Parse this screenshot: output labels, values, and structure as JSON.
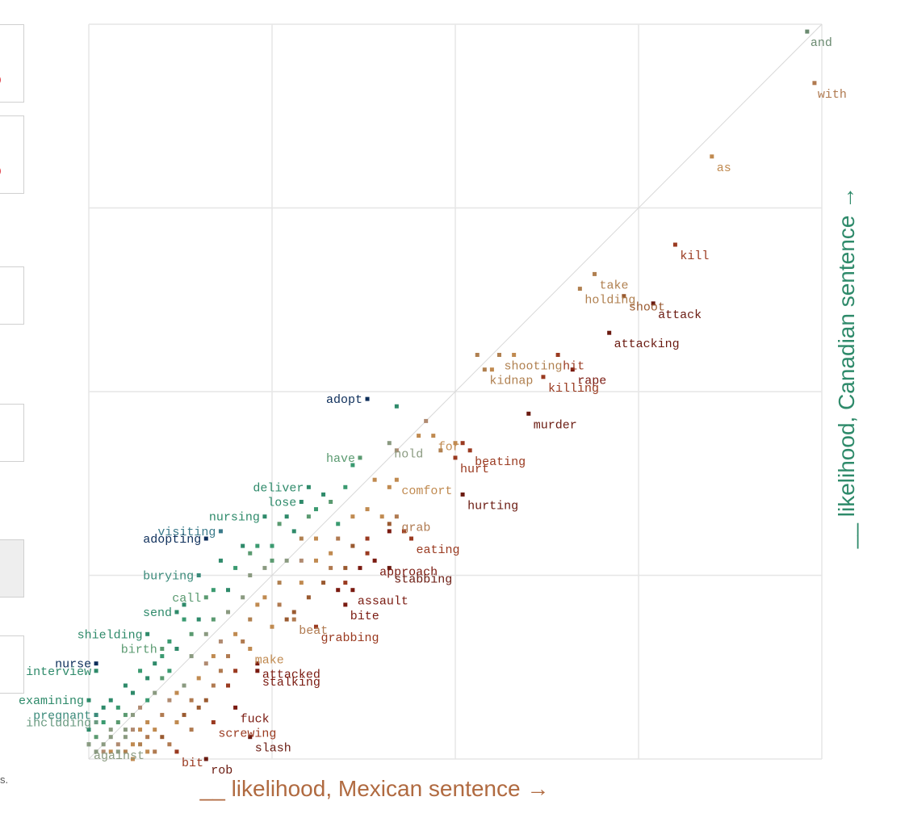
{
  "side_panel": {
    "colors": {
      "accent": "#e0424b",
      "border": "#d0d0d0",
      "active_bg": "#eeeeee"
    },
    "cut_text": "s."
  },
  "chart_data": {
    "type": "scatter",
    "title": "",
    "xlabel": "__ likelihood, Mexican sentence →",
    "ylabel": "__ likelihood, Canadian sentence →",
    "xlim": [
      0,
      1
    ],
    "ylim": [
      0,
      1
    ],
    "grid": true,
    "diagonal": true,
    "color_scale": {
      "mexican_leaning": "#7a1a10",
      "neutral_tan": "#c08a50",
      "neutral_gray": "#8a9a80",
      "canadian_leaning": "#2e8a6a",
      "strong_canadian": "#0d2e5a"
    },
    "x_color": "#b06a40",
    "y_color": "#2e8a6a",
    "labeled_points": [
      {
        "word": "and",
        "x": 0.98,
        "y": 0.99,
        "color": "#6a8a70"
      },
      {
        "word": "with",
        "x": 0.99,
        "y": 0.92,
        "color": "#b07a50"
      },
      {
        "word": "as",
        "x": 0.85,
        "y": 0.82,
        "color": "#c08a50"
      },
      {
        "word": "kill",
        "x": 0.8,
        "y": 0.7,
        "color": "#9a3a20"
      },
      {
        "word": "holding",
        "x": 0.67,
        "y": 0.64,
        "color": "#b08050"
      },
      {
        "word": "take",
        "x": 0.69,
        "y": 0.66,
        "color": "#b08050"
      },
      {
        "word": "shoot",
        "x": 0.73,
        "y": 0.63,
        "color": "#9a5a30"
      },
      {
        "word": "attack",
        "x": 0.77,
        "y": 0.62,
        "color": "#6a1a10"
      },
      {
        "word": "attacking",
        "x": 0.71,
        "y": 0.58,
        "color": "#6a1a10"
      },
      {
        "word": "shooting",
        "x": 0.56,
        "y": 0.55,
        "color": "#b08050"
      },
      {
        "word": "kidnap",
        "x": 0.54,
        "y": 0.53,
        "color": "#b08050"
      },
      {
        "word": "hit",
        "x": 0.64,
        "y": 0.55,
        "color": "#9a3a20"
      },
      {
        "word": "rape",
        "x": 0.66,
        "y": 0.53,
        "color": "#7a1a10"
      },
      {
        "word": "killing",
        "x": 0.62,
        "y": 0.52,
        "color": "#9a3a20"
      },
      {
        "word": "murder",
        "x": 0.6,
        "y": 0.47,
        "color": "#6a1a10"
      },
      {
        "word": "adopt",
        "x": 0.38,
        "y": 0.49,
        "color": "#0d2e5a"
      },
      {
        "word": "hold",
        "x": 0.41,
        "y": 0.43,
        "color": "#8a9a80"
      },
      {
        "word": "for",
        "x": 0.47,
        "y": 0.44,
        "color": "#c08a50"
      },
      {
        "word": "beating",
        "x": 0.52,
        "y": 0.42,
        "color": "#9a3a20"
      },
      {
        "word": "hurt",
        "x": 0.5,
        "y": 0.41,
        "color": "#9a3a20"
      },
      {
        "word": "have",
        "x": 0.37,
        "y": 0.41,
        "color": "#5a9a70"
      },
      {
        "word": "comfort",
        "x": 0.42,
        "y": 0.38,
        "color": "#c08a50"
      },
      {
        "word": "hurting",
        "x": 0.51,
        "y": 0.36,
        "color": "#6a1a10"
      },
      {
        "word": "deliver",
        "x": 0.3,
        "y": 0.37,
        "color": "#2e8a6a"
      },
      {
        "word": "lose",
        "x": 0.29,
        "y": 0.35,
        "color": "#2e8a6a"
      },
      {
        "word": "grab",
        "x": 0.42,
        "y": 0.33,
        "color": "#b07a50"
      },
      {
        "word": "nursing",
        "x": 0.24,
        "y": 0.33,
        "color": "#2e8a6a"
      },
      {
        "word": "eating",
        "x": 0.44,
        "y": 0.3,
        "color": "#9a3a20"
      },
      {
        "word": "visiting",
        "x": 0.18,
        "y": 0.31,
        "color": "#3a7a8a"
      },
      {
        "word": "adopting",
        "x": 0.16,
        "y": 0.3,
        "color": "#0d2e5a"
      },
      {
        "word": "approach",
        "x": 0.39,
        "y": 0.27,
        "color": "#7a1a10"
      },
      {
        "word": "stabbing",
        "x": 0.41,
        "y": 0.26,
        "color": "#6a1a10"
      },
      {
        "word": "burying",
        "x": 0.15,
        "y": 0.25,
        "color": "#3a8a7a"
      },
      {
        "word": "assault",
        "x": 0.36,
        "y": 0.23,
        "color": "#7a1a10"
      },
      {
        "word": "call",
        "x": 0.16,
        "y": 0.22,
        "color": "#5a9a70"
      },
      {
        "word": "bite",
        "x": 0.35,
        "y": 0.21,
        "color": "#7a1a10"
      },
      {
        "word": "send",
        "x": 0.12,
        "y": 0.2,
        "color": "#2e8a6a"
      },
      {
        "word": "beat",
        "x": 0.28,
        "y": 0.19,
        "color": "#b07a50"
      },
      {
        "word": "grabbing",
        "x": 0.31,
        "y": 0.18,
        "color": "#9a3a20"
      },
      {
        "word": "shielding",
        "x": 0.08,
        "y": 0.17,
        "color": "#2e8a6a"
      },
      {
        "word": "birth",
        "x": 0.1,
        "y": 0.15,
        "color": "#5a9a70"
      },
      {
        "word": "make",
        "x": 0.22,
        "y": 0.15,
        "color": "#c08a50"
      },
      {
        "word": "nurse",
        "x": 0.01,
        "y": 0.13,
        "color": "#0d2e5a"
      },
      {
        "word": "attacked",
        "x": 0.23,
        "y": 0.13,
        "color": "#7a1a10"
      },
      {
        "word": "interview",
        "x": 0.01,
        "y": 0.12,
        "color": "#2e8a6a"
      },
      {
        "word": "stalking",
        "x": 0.23,
        "y": 0.12,
        "color": "#7a1a10"
      },
      {
        "word": "examining",
        "x": 0.0,
        "y": 0.08,
        "color": "#2e8a6a"
      },
      {
        "word": "fuck",
        "x": 0.2,
        "y": 0.07,
        "color": "#7a1a10"
      },
      {
        "word": "pregnant",
        "x": 0.01,
        "y": 0.06,
        "color": "#3a8a7a"
      },
      {
        "word": "screwing",
        "x": 0.17,
        "y": 0.05,
        "color": "#9a3a20"
      },
      {
        "word": "including",
        "x": 0.01,
        "y": 0.05,
        "color": "#6a9a80"
      },
      {
        "word": "slash",
        "x": 0.22,
        "y": 0.03,
        "color": "#6a1a10"
      },
      {
        "word": "against",
        "x": 0.0,
        "y": 0.02,
        "color": "#8a9a80"
      },
      {
        "word": "bit",
        "x": 0.12,
        "y": 0.01,
        "color": "#9a3a20"
      },
      {
        "word": "rob",
        "x": 0.16,
        "y": 0.0,
        "color": "#6a1a10"
      }
    ],
    "unlabeled_points": [
      {
        "x": 0.42,
        "y": 0.48,
        "color": "#2e8a6a"
      },
      {
        "x": 0.46,
        "y": 0.46,
        "color": "#b08a70"
      },
      {
        "x": 0.53,
        "y": 0.55,
        "color": "#b08050"
      },
      {
        "x": 0.58,
        "y": 0.55,
        "color": "#c08a50"
      },
      {
        "x": 0.55,
        "y": 0.53,
        "color": "#c08a50"
      },
      {
        "x": 0.42,
        "y": 0.42,
        "color": "#b08a70"
      },
      {
        "x": 0.45,
        "y": 0.44,
        "color": "#c08a50"
      },
      {
        "x": 0.5,
        "y": 0.43,
        "color": "#c08a50"
      },
      {
        "x": 0.51,
        "y": 0.43,
        "color": "#9a3a20"
      },
      {
        "x": 0.48,
        "y": 0.42,
        "color": "#b08050"
      },
      {
        "x": 0.36,
        "y": 0.4,
        "color": "#3a9a70"
      },
      {
        "x": 0.39,
        "y": 0.38,
        "color": "#c08a50"
      },
      {
        "x": 0.41,
        "y": 0.37,
        "color": "#c08a50"
      },
      {
        "x": 0.35,
        "y": 0.37,
        "color": "#3a9a70"
      },
      {
        "x": 0.32,
        "y": 0.36,
        "color": "#2e8a6a"
      },
      {
        "x": 0.33,
        "y": 0.35,
        "color": "#5a9a70"
      },
      {
        "x": 0.36,
        "y": 0.33,
        "color": "#c08a50"
      },
      {
        "x": 0.38,
        "y": 0.34,
        "color": "#c08a50"
      },
      {
        "x": 0.4,
        "y": 0.33,
        "color": "#c08a50"
      },
      {
        "x": 0.41,
        "y": 0.32,
        "color": "#9a5a30"
      },
      {
        "x": 0.34,
        "y": 0.32,
        "color": "#3a9a70"
      },
      {
        "x": 0.3,
        "y": 0.33,
        "color": "#5a9a70"
      },
      {
        "x": 0.28,
        "y": 0.31,
        "color": "#2e8a6a"
      },
      {
        "x": 0.26,
        "y": 0.32,
        "color": "#5a9a70"
      },
      {
        "x": 0.29,
        "y": 0.3,
        "color": "#b08050"
      },
      {
        "x": 0.31,
        "y": 0.3,
        "color": "#c08a50"
      },
      {
        "x": 0.34,
        "y": 0.3,
        "color": "#b07a50"
      },
      {
        "x": 0.36,
        "y": 0.29,
        "color": "#9a5a30"
      },
      {
        "x": 0.38,
        "y": 0.3,
        "color": "#9a3a20"
      },
      {
        "x": 0.41,
        "y": 0.31,
        "color": "#7a1a10"
      },
      {
        "x": 0.43,
        "y": 0.31,
        "color": "#9a3a20"
      },
      {
        "x": 0.21,
        "y": 0.29,
        "color": "#2e8a6a"
      },
      {
        "x": 0.23,
        "y": 0.29,
        "color": "#3a9a70"
      },
      {
        "x": 0.25,
        "y": 0.27,
        "color": "#5a9a70"
      },
      {
        "x": 0.27,
        "y": 0.27,
        "color": "#8a9a80"
      },
      {
        "x": 0.29,
        "y": 0.27,
        "color": "#b08a70"
      },
      {
        "x": 0.31,
        "y": 0.27,
        "color": "#c08a50"
      },
      {
        "x": 0.33,
        "y": 0.26,
        "color": "#b07a50"
      },
      {
        "x": 0.35,
        "y": 0.26,
        "color": "#9a5a30"
      },
      {
        "x": 0.37,
        "y": 0.26,
        "color": "#7a1a10"
      },
      {
        "x": 0.38,
        "y": 0.28,
        "color": "#9a3a20"
      },
      {
        "x": 0.2,
        "y": 0.26,
        "color": "#3a9a70"
      },
      {
        "x": 0.22,
        "y": 0.25,
        "color": "#8a9a80"
      },
      {
        "x": 0.24,
        "y": 0.26,
        "color": "#8a9a80"
      },
      {
        "x": 0.26,
        "y": 0.24,
        "color": "#b08050"
      },
      {
        "x": 0.29,
        "y": 0.24,
        "color": "#c08a50"
      },
      {
        "x": 0.32,
        "y": 0.24,
        "color": "#9a5a30"
      },
      {
        "x": 0.34,
        "y": 0.23,
        "color": "#7a1a10"
      },
      {
        "x": 0.35,
        "y": 0.24,
        "color": "#9a3a20"
      },
      {
        "x": 0.19,
        "y": 0.23,
        "color": "#2e8a6a"
      },
      {
        "x": 0.21,
        "y": 0.22,
        "color": "#8a9a80"
      },
      {
        "x": 0.23,
        "y": 0.21,
        "color": "#c08a50"
      },
      {
        "x": 0.26,
        "y": 0.21,
        "color": "#b07a50"
      },
      {
        "x": 0.3,
        "y": 0.22,
        "color": "#9a5a30"
      },
      {
        "x": 0.13,
        "y": 0.19,
        "color": "#3a9a70"
      },
      {
        "x": 0.15,
        "y": 0.19,
        "color": "#2e8a6a"
      },
      {
        "x": 0.17,
        "y": 0.19,
        "color": "#5a9a70"
      },
      {
        "x": 0.19,
        "y": 0.2,
        "color": "#8a9a80"
      },
      {
        "x": 0.22,
        "y": 0.19,
        "color": "#b08050"
      },
      {
        "x": 0.25,
        "y": 0.18,
        "color": "#c08a50"
      },
      {
        "x": 0.27,
        "y": 0.19,
        "color": "#9a5a30"
      },
      {
        "x": 0.14,
        "y": 0.17,
        "color": "#5a9a70"
      },
      {
        "x": 0.16,
        "y": 0.17,
        "color": "#8a9a80"
      },
      {
        "x": 0.18,
        "y": 0.16,
        "color": "#b08a70"
      },
      {
        "x": 0.2,
        "y": 0.17,
        "color": "#c08a50"
      },
      {
        "x": 0.21,
        "y": 0.16,
        "color": "#b07a50"
      },
      {
        "x": 0.1,
        "y": 0.14,
        "color": "#3a9a70"
      },
      {
        "x": 0.12,
        "y": 0.15,
        "color": "#2e8a6a"
      },
      {
        "x": 0.14,
        "y": 0.14,
        "color": "#8a9a80"
      },
      {
        "x": 0.16,
        "y": 0.13,
        "color": "#b08a70"
      },
      {
        "x": 0.17,
        "y": 0.14,
        "color": "#c08a50"
      },
      {
        "x": 0.18,
        "y": 0.12,
        "color": "#b07a50"
      },
      {
        "x": 0.2,
        "y": 0.12,
        "color": "#9a3a20"
      },
      {
        "x": 0.08,
        "y": 0.11,
        "color": "#2e8a6a"
      },
      {
        "x": 0.1,
        "y": 0.11,
        "color": "#5a9a70"
      },
      {
        "x": 0.11,
        "y": 0.12,
        "color": "#3a9a70"
      },
      {
        "x": 0.13,
        "y": 0.1,
        "color": "#8a9a80"
      },
      {
        "x": 0.15,
        "y": 0.11,
        "color": "#c08a50"
      },
      {
        "x": 0.17,
        "y": 0.1,
        "color": "#b07a50"
      },
      {
        "x": 0.19,
        "y": 0.1,
        "color": "#9a3a20"
      },
      {
        "x": 0.06,
        "y": 0.09,
        "color": "#2e8a6a"
      },
      {
        "x": 0.08,
        "y": 0.08,
        "color": "#3a9a70"
      },
      {
        "x": 0.09,
        "y": 0.09,
        "color": "#8a9a80"
      },
      {
        "x": 0.11,
        "y": 0.08,
        "color": "#b08a70"
      },
      {
        "x": 0.12,
        "y": 0.09,
        "color": "#c08a50"
      },
      {
        "x": 0.14,
        "y": 0.08,
        "color": "#b07a50"
      },
      {
        "x": 0.15,
        "y": 0.07,
        "color": "#9a5a30"
      },
      {
        "x": 0.02,
        "y": 0.07,
        "color": "#2e8a6a"
      },
      {
        "x": 0.04,
        "y": 0.07,
        "color": "#3a9a70"
      },
      {
        "x": 0.05,
        "y": 0.06,
        "color": "#5a9a70"
      },
      {
        "x": 0.06,
        "y": 0.06,
        "color": "#8a9a80"
      },
      {
        "x": 0.07,
        "y": 0.07,
        "color": "#b08a70"
      },
      {
        "x": 0.08,
        "y": 0.05,
        "color": "#c08a50"
      },
      {
        "x": 0.1,
        "y": 0.06,
        "color": "#b07a50"
      },
      {
        "x": 0.12,
        "y": 0.05,
        "color": "#c08a50"
      },
      {
        "x": 0.13,
        "y": 0.06,
        "color": "#9a5a30"
      },
      {
        "x": 0.02,
        "y": 0.05,
        "color": "#3a9a70"
      },
      {
        "x": 0.03,
        "y": 0.04,
        "color": "#8a9a80"
      },
      {
        "x": 0.04,
        "y": 0.05,
        "color": "#5a9a70"
      },
      {
        "x": 0.05,
        "y": 0.04,
        "color": "#8a9a80"
      },
      {
        "x": 0.06,
        "y": 0.04,
        "color": "#b08a70"
      },
      {
        "x": 0.07,
        "y": 0.04,
        "color": "#c08a50"
      },
      {
        "x": 0.08,
        "y": 0.03,
        "color": "#b07a50"
      },
      {
        "x": 0.09,
        "y": 0.04,
        "color": "#c08a50"
      },
      {
        "x": 0.1,
        "y": 0.03,
        "color": "#9a5a30"
      },
      {
        "x": 0.11,
        "y": 0.02,
        "color": "#b07a50"
      },
      {
        "x": 0.01,
        "y": 0.03,
        "color": "#5a9a70"
      },
      {
        "x": 0.02,
        "y": 0.02,
        "color": "#8a9a80"
      },
      {
        "x": 0.03,
        "y": 0.03,
        "color": "#8a9a80"
      },
      {
        "x": 0.04,
        "y": 0.02,
        "color": "#b08a70"
      },
      {
        "x": 0.05,
        "y": 0.03,
        "color": "#8a9a80"
      },
      {
        "x": 0.06,
        "y": 0.02,
        "color": "#c08a50"
      },
      {
        "x": 0.07,
        "y": 0.02,
        "color": "#b08050"
      },
      {
        "x": 0.08,
        "y": 0.01,
        "color": "#c08a50"
      },
      {
        "x": 0.09,
        "y": 0.01,
        "color": "#b07a50"
      },
      {
        "x": 0.01,
        "y": 0.01,
        "color": "#8a9a80"
      },
      {
        "x": 0.02,
        "y": 0.01,
        "color": "#b08a70"
      },
      {
        "x": 0.03,
        "y": 0.01,
        "color": "#c08a50"
      },
      {
        "x": 0.04,
        "y": 0.01,
        "color": "#8a9a80"
      },
      {
        "x": 0.05,
        "y": 0.01,
        "color": "#b08050"
      },
      {
        "x": 0.06,
        "y": 0.0,
        "color": "#c08a50"
      },
      {
        "x": 0.0,
        "y": 0.02,
        "color": "#3a9a70"
      },
      {
        "x": 0.0,
        "y": 0.04,
        "color": "#2e8a6a"
      },
      {
        "x": 0.01,
        "y": 0.06,
        "color": "#3a9a70"
      },
      {
        "x": 0.03,
        "y": 0.08,
        "color": "#2e8a6a"
      },
      {
        "x": 0.05,
        "y": 0.1,
        "color": "#2e8a6a"
      },
      {
        "x": 0.07,
        "y": 0.12,
        "color": "#3a9a70"
      },
      {
        "x": 0.09,
        "y": 0.13,
        "color": "#2e8a6a"
      },
      {
        "x": 0.11,
        "y": 0.16,
        "color": "#3a9a70"
      },
      {
        "x": 0.13,
        "y": 0.21,
        "color": "#2e8a6a"
      },
      {
        "x": 0.17,
        "y": 0.23,
        "color": "#3a9a70"
      },
      {
        "x": 0.18,
        "y": 0.27,
        "color": "#2e8a6a"
      },
      {
        "x": 0.22,
        "y": 0.28,
        "color": "#5a9a70"
      },
      {
        "x": 0.25,
        "y": 0.29,
        "color": "#3a9a70"
      },
      {
        "x": 0.27,
        "y": 0.33,
        "color": "#2e8a6a"
      },
      {
        "x": 0.31,
        "y": 0.34,
        "color": "#3a9a70"
      },
      {
        "x": 0.24,
        "y": 0.22,
        "color": "#c08a50"
      },
      {
        "x": 0.28,
        "y": 0.2,
        "color": "#9a5a30"
      },
      {
        "x": 0.33,
        "y": 0.28,
        "color": "#c08a50"
      },
      {
        "x": 0.19,
        "y": 0.14,
        "color": "#b07a50"
      },
      {
        "x": 0.16,
        "y": 0.08,
        "color": "#9a5a30"
      },
      {
        "x": 0.14,
        "y": 0.04,
        "color": "#b07a50"
      }
    ]
  }
}
